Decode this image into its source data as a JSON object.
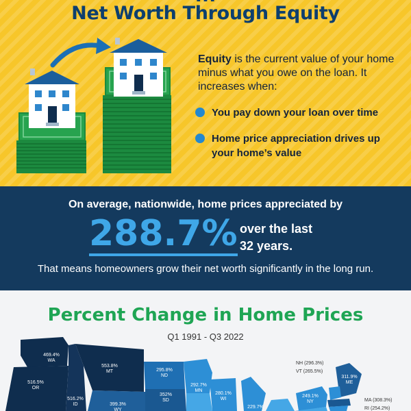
{
  "header": {
    "title_cut": "...",
    "title": "Net Worth Through Equity"
  },
  "equity": {
    "term": "Equity",
    "definition": " is the current value of your home minus what you owe on the loan. It increases when:",
    "bullets": [
      "You pay down your loan over time",
      "Home price appreciation drives up your home’s value"
    ]
  },
  "stats": {
    "intro": "On average, nationwide, home prices appreciated by",
    "percent": "288.7%",
    "period_line1": "over the last",
    "period_line2": "32 years.",
    "conclusion": "That means homeowners grow their net worth significantly in the long run."
  },
  "map": {
    "title": "Percent Change in Home Prices",
    "subtitle": "Q1 1991 - Q3 2022",
    "colors": {
      "dark": "#0f2d4e",
      "mid": "#1f6fb3",
      "light": "#2d8fd6",
      "lighter": "#45a7e6"
    },
    "states": [
      {
        "abbr": "WA",
        "value": "469.4%"
      },
      {
        "abbr": "OR",
        "value": "516.5%"
      },
      {
        "abbr": "ID",
        "value": "516.2%"
      },
      {
        "abbr": "MT",
        "value": "553.8%"
      },
      {
        "abbr": "WY",
        "value": "399.3%"
      },
      {
        "abbr": "ND",
        "value": "295.8%"
      },
      {
        "abbr": "SD",
        "value": "352%"
      },
      {
        "abbr": "MN",
        "value": "292.7%"
      },
      {
        "abbr": "WI",
        "value": "280.1%"
      },
      {
        "abbr": "MI",
        "value": "229.7%"
      },
      {
        "abbr": "NY",
        "value": "249.1%"
      },
      {
        "abbr": "ME",
        "value": "311.9%"
      },
      {
        "abbr": "NH",
        "value": "296.3%"
      },
      {
        "abbr": "VT",
        "value": "265.5%"
      },
      {
        "abbr": "MA",
        "value": "308.3%"
      },
      {
        "abbr": "RI",
        "value": "254.2%"
      }
    ]
  }
}
